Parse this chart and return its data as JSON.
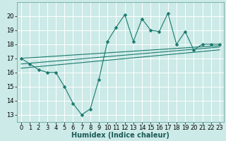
{
  "bg_color": "#cceae7",
  "grid_color": "#ffffff",
  "line_color": "#1a7a6e",
  "xlabel": "Humidex (Indice chaleur)",
  "xlabel_fontsize": 7,
  "tick_fontsize": 6,
  "ylim": [
    12.5,
    21.0
  ],
  "xlim": [
    -0.5,
    23.5
  ],
  "yticks": [
    13,
    14,
    15,
    16,
    17,
    18,
    19,
    20
  ],
  "xticks": [
    0,
    1,
    2,
    3,
    4,
    5,
    6,
    7,
    8,
    9,
    10,
    11,
    12,
    13,
    14,
    15,
    16,
    17,
    18,
    19,
    20,
    21,
    22,
    23
  ],
  "series_main": {
    "x": [
      0,
      1,
      2,
      3,
      4,
      5,
      6,
      7,
      8,
      9,
      10,
      11,
      12,
      13,
      14,
      15,
      16,
      17,
      18,
      19,
      20,
      21,
      22,
      23
    ],
    "y": [
      17.0,
      16.6,
      16.2,
      16.0,
      16.0,
      15.0,
      13.8,
      13.0,
      13.4,
      15.5,
      18.2,
      19.2,
      20.1,
      18.2,
      19.8,
      19.0,
      18.9,
      20.2,
      18.0,
      18.9,
      17.6,
      18.0,
      18.0,
      18.0
    ]
  },
  "series_smooth1": {
    "x": [
      0,
      23
    ],
    "y": [
      17.0,
      17.9
    ]
  },
  "series_smooth2": {
    "x": [
      0,
      23
    ],
    "y": [
      16.6,
      17.8
    ]
  },
  "series_smooth3": {
    "x": [
      0,
      23
    ],
    "y": [
      16.3,
      17.6
    ]
  }
}
